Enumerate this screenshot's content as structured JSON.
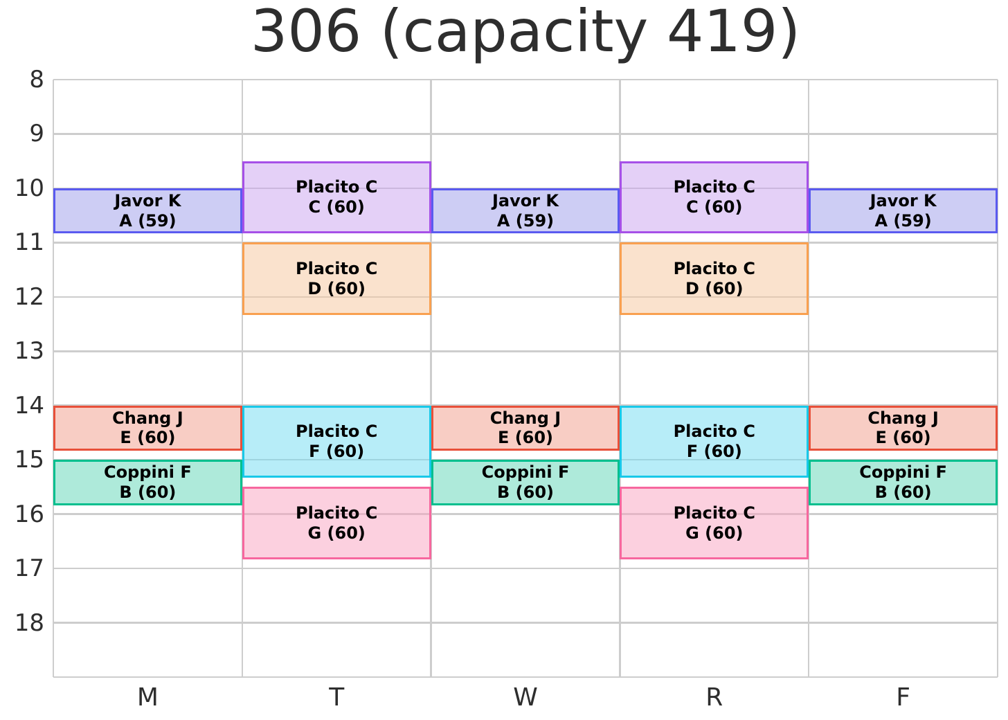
{
  "title": "306 (capacity 419)",
  "chart_data": {
    "type": "schedule",
    "description": "Weekly room schedule grid: days of week on x-axis, hour of day on inverted y-axis, colored blocks are class meetings labeled instructor / section (enrollment)",
    "x_categories": [
      "M",
      "T",
      "W",
      "R",
      "F"
    ],
    "y_axis": {
      "unit": "hour",
      "ticks": [
        8,
        9,
        10,
        11,
        12,
        13,
        14,
        15,
        16,
        17,
        18
      ],
      "range": [
        8,
        19
      ],
      "inverted": true
    },
    "blocks": [
      {
        "instructor": "Javor K",
        "section": "A",
        "enrollment": 59,
        "line1": "Javor K",
        "line2": "A (59)",
        "days": [
          "M",
          "W",
          "F"
        ],
        "start_hour": 10.0,
        "end_hour": 10.833,
        "fill": "rgba(155,155,233,0.5)",
        "border": "#5a5af0"
      },
      {
        "instructor": "Placito C",
        "section": "C",
        "enrollment": 60,
        "line1": "Placito C",
        "line2": "C (60)",
        "days": [
          "T",
          "R"
        ],
        "start_hour": 9.5,
        "end_hour": 10.833,
        "fill": "rgba(201,161,239,0.5)",
        "border": "#a650e8"
      },
      {
        "instructor": "Placito C",
        "section": "D",
        "enrollment": 60,
        "line1": "Placito C",
        "line2": "D (60)",
        "days": [
          "T",
          "R"
        ],
        "start_hour": 11.0,
        "end_hour": 12.333,
        "fill": "rgba(245,197,155,0.5)",
        "border": "#f9a050"
      },
      {
        "instructor": "Chang J",
        "section": "E",
        "enrollment": 60,
        "line1": "Chang J",
        "line2": "E (60)",
        "days": [
          "M",
          "W",
          "F"
        ],
        "start_hour": 14.0,
        "end_hour": 14.833,
        "fill": "rgba(241,155,137,0.5)",
        "border": "#e8503a"
      },
      {
        "instructor": "Placito C",
        "section": "F",
        "enrollment": 60,
        "line1": "Placito C",
        "line2": "F (60)",
        "days": [
          "T",
          "R"
        ],
        "start_hour": 14.0,
        "end_hour": 15.333,
        "fill": "rgba(111,219,241,0.5)",
        "border": "#18c9e9"
      },
      {
        "instructor": "Coppini F",
        "section": "B",
        "enrollment": 60,
        "line1": "Coppini F",
        "line2": "B (60)",
        "days": [
          "M",
          "W",
          "F"
        ],
        "start_hour": 15.0,
        "end_hour": 15.833,
        "fill": "rgba(93,213,181,0.5)",
        "border": "#00bf8e"
      },
      {
        "instructor": "Placito C",
        "section": "G",
        "enrollment": 60,
        "line1": "Placito C",
        "line2": "G (60)",
        "days": [
          "T",
          "R"
        ],
        "start_hour": 15.5,
        "end_hour": 16.833,
        "fill": "rgba(249,161,191,0.5)",
        "border": "#f7679e"
      }
    ],
    "style": {
      "gridline_color": "#cdcdcd",
      "tick_label_color": "#2e2e2e",
      "block_text_color": "#000000",
      "background_color": "#ffffff"
    }
  }
}
